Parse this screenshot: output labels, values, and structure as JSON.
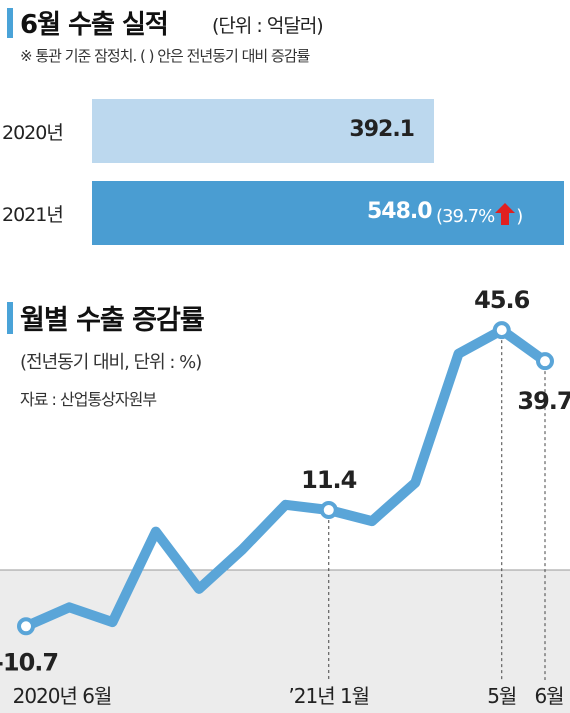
{
  "header": {
    "title": "6월 수출 실적",
    "unit": "(단위 : 억달러)",
    "note": "※ 통관 기준 잠정치. (   ) 안은 전년동기 대비 증감률"
  },
  "bar_chart": {
    "rows": [
      {
        "label": "2020년",
        "value": "392.1",
        "change": ""
      },
      {
        "label": "2021년",
        "value": "548.0",
        "change": "(39.7%"
      }
    ],
    "colors": {
      "bar_2020": "#bcd8ee",
      "bar_2021": "#4a9dd2",
      "arrow": "#e02020",
      "text_2020": "#222222",
      "text_2021": "#ffffff"
    }
  },
  "line_section": {
    "title": "월별 수출 증감률",
    "subtitle": "(전년동기 대비, 단위 : %)",
    "source": "자료 : 산업통상자원부"
  },
  "chart_data": [
    {
      "type": "bar",
      "categories": [
        "2020년",
        "2021년"
      ],
      "values": [
        392.1,
        548.0
      ],
      "title": "6월 수출 실적",
      "ylabel": "",
      "annotations": [
        "(39.7%↑)"
      ]
    },
    {
      "type": "line",
      "title": "월별 수출 증감률",
      "x": [
        "2020-06",
        "2020-07",
        "2020-08",
        "2020-09",
        "2020-10",
        "2020-11",
        "2020-12",
        "2021-01",
        "2021-02",
        "2021-03",
        "2021-04",
        "2021-05",
        "2021-06"
      ],
      "values": [
        -10.7,
        -7.1,
        -9.9,
        7.3,
        -3.6,
        3.9,
        12.4,
        11.4,
        9.3,
        16.6,
        41.1,
        45.6,
        39.7
      ],
      "labeled_points": [
        {
          "x": "2020-06",
          "label": "-10.7"
        },
        {
          "x": "2021-01",
          "label": "11.4"
        },
        {
          "x": "2021-05",
          "label": "45.6"
        },
        {
          "x": "2021-06",
          "label": "39.7"
        }
      ],
      "tick_labels": [
        "2020년 6월",
        "’21년 1월",
        "5월",
        "6월"
      ],
      "ylim": [
        -13,
        50
      ],
      "colors": {
        "line": "#5aa5d8",
        "negative_zone": "#ececec",
        "zero_line": "#9a9a9a"
      }
    }
  ]
}
